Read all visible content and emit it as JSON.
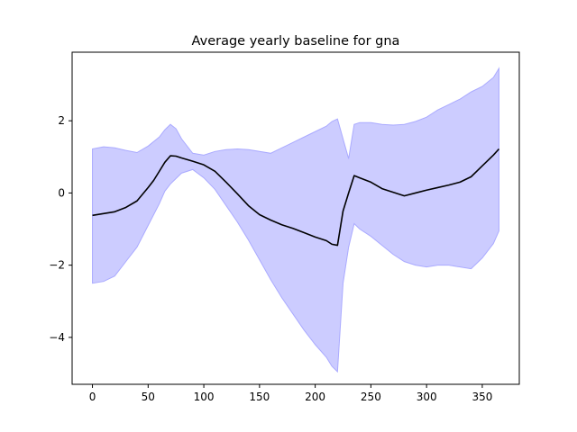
{
  "chart_data": {
    "type": "area",
    "title": "Average yearly baseline for gna",
    "xlabel": "",
    "ylabel": "",
    "xlim": [
      -18.25,
      383.25
    ],
    "ylim": [
      -5.3,
      3.9
    ],
    "x_ticks": [
      0,
      50,
      100,
      150,
      200,
      250,
      300,
      350
    ],
    "y_ticks": [
      -4,
      -2,
      0,
      2
    ],
    "grid": false,
    "legend": "none",
    "colors": {
      "mean_line": "#000000",
      "band_fill": "#ccccff",
      "band_edge": "#aaaaff"
    },
    "series": [
      {
        "type": "line",
        "x": [
          0,
          10,
          20,
          30,
          40,
          50,
          55,
          60,
          65,
          70,
          75,
          80,
          90,
          100,
          110,
          120,
          130,
          140,
          150,
          160,
          170,
          180,
          190,
          200,
          210,
          215,
          220,
          225,
          230,
          235,
          240,
          250,
          260,
          270,
          280,
          290,
          300,
          310,
          320,
          330,
          340,
          350,
          360,
          365
        ],
        "y": [
          -0.62,
          -0.57,
          -0.52,
          -0.4,
          -0.22,
          0.15,
          0.35,
          0.6,
          0.85,
          1.03,
          1.02,
          0.97,
          0.88,
          0.78,
          0.6,
          0.3,
          -0.02,
          -0.35,
          -0.6,
          -0.75,
          -0.88,
          -0.98,
          -1.1,
          -1.22,
          -1.32,
          -1.42,
          -1.45,
          -0.5,
          0.0,
          0.48,
          0.42,
          0.3,
          0.12,
          0.02,
          -0.08,
          0.0,
          0.08,
          0.15,
          0.22,
          0.3,
          0.45,
          0.75,
          1.05,
          1.22
        ]
      },
      {
        "type": "band",
        "x": [
          0,
          10,
          20,
          30,
          40,
          50,
          60,
          65,
          70,
          75,
          80,
          90,
          100,
          110,
          120,
          130,
          140,
          150,
          160,
          170,
          180,
          190,
          200,
          210,
          215,
          220,
          225,
          230,
          235,
          240,
          250,
          260,
          270,
          280,
          290,
          300,
          310,
          320,
          330,
          340,
          350,
          360,
          365
        ],
        "upper": [
          1.22,
          1.28,
          1.25,
          1.18,
          1.12,
          1.3,
          1.55,
          1.75,
          1.9,
          1.78,
          1.5,
          1.1,
          1.05,
          1.15,
          1.2,
          1.22,
          1.2,
          1.15,
          1.1,
          1.25,
          1.4,
          1.55,
          1.7,
          1.85,
          1.98,
          2.05,
          1.5,
          0.95,
          1.9,
          1.95,
          1.95,
          1.9,
          1.88,
          1.9,
          1.98,
          2.1,
          2.3,
          2.45,
          2.6,
          2.8,
          2.95,
          3.2,
          3.45
        ],
        "lower": [
          -2.5,
          -2.45,
          -2.3,
          -1.9,
          -1.5,
          -0.9,
          -0.3,
          0.05,
          0.25,
          0.4,
          0.55,
          0.65,
          0.42,
          0.1,
          -0.35,
          -0.8,
          -1.3,
          -1.85,
          -2.4,
          -2.9,
          -3.35,
          -3.8,
          -4.2,
          -4.55,
          -4.8,
          -4.95,
          -2.5,
          -1.5,
          -0.85,
          -1.0,
          -1.2,
          -1.45,
          -1.7,
          -1.9,
          -2.0,
          -2.05,
          -2.0,
          -2.0,
          -2.05,
          -2.1,
          -1.8,
          -1.4,
          -1.05
        ]
      }
    ]
  }
}
